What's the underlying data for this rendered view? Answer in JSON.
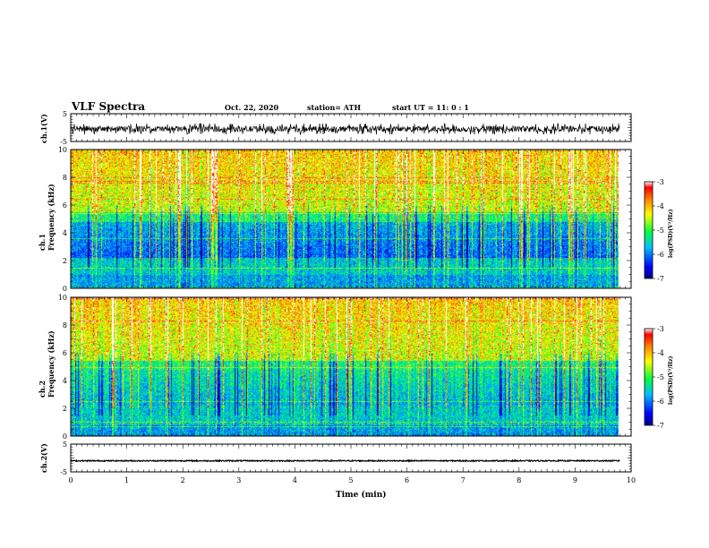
{
  "header": {
    "title": "VLF Spectra",
    "date": "Oct. 22, 2020",
    "station": "station= ATH",
    "start": "start  UT =   11: 0   : 1"
  },
  "chart_data": [
    {
      "type": "line",
      "name": "ch1-waveform",
      "ylabel": "ch.1(V)",
      "xlim": [
        0,
        10
      ],
      "ylim": [
        -5,
        5
      ],
      "y_ticks": [
        "5",
        "-5"
      ],
      "approx_range": [
        -2.5,
        1.5
      ]
    },
    {
      "type": "heatmap",
      "name": "ch1-spectrogram",
      "ylabel": "ch.1\nFrequency (kHz)",
      "xlim": [
        0,
        9.8
      ],
      "ylim": [
        0,
        10
      ],
      "y_ticks": [
        "0",
        "2",
        "4",
        "6",
        "8",
        "10"
      ],
      "colorbar": {
        "label": "log(PSD)(V²/Hz)",
        "min": -7,
        "max": -3,
        "ticks": [
          "-3",
          "-4",
          "-5",
          "-6",
          "-7"
        ]
      }
    },
    {
      "type": "heatmap",
      "name": "ch2-spectrogram",
      "ylabel": "ch.2\nFrequency (kHz)",
      "xlim": [
        0,
        9.8
      ],
      "ylim": [
        0,
        10
      ],
      "y_ticks": [
        "0",
        "2",
        "4",
        "6",
        "8",
        "10"
      ],
      "colorbar": {
        "label": "log(PSD)(V²/Hz)",
        "min": -7,
        "max": -3,
        "ticks": [
          "-3",
          "-4",
          "-5",
          "-6",
          "-7"
        ]
      }
    },
    {
      "type": "line",
      "name": "ch2-waveform",
      "ylabel": "ch.2(V)",
      "xlim": [
        0,
        10
      ],
      "ylim": [
        -5,
        5
      ],
      "y_ticks": [
        "5",
        "-5"
      ],
      "approx_range": [
        -1.2,
        -0.8
      ]
    }
  ],
  "x_axis": {
    "label": "Time (min)",
    "ticks": [
      "0",
      "1",
      "2",
      "3",
      "4",
      "5",
      "6",
      "7",
      "8",
      "9",
      "10"
    ]
  }
}
